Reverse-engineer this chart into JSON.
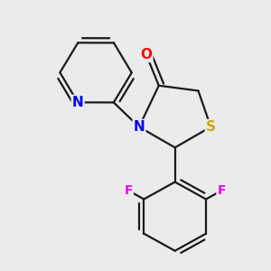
{
  "background_color": "#ebebeb",
  "bond_color": "#1a1a1a",
  "atom_colors": {
    "O": "#ff0000",
    "N": "#0000ee",
    "S": "#ccaa00",
    "F": "#ee00ee",
    "C": "#1a1a1a"
  },
  "bond_width": 1.6,
  "figsize": [
    3.0,
    3.0
  ],
  "dpi": 100
}
